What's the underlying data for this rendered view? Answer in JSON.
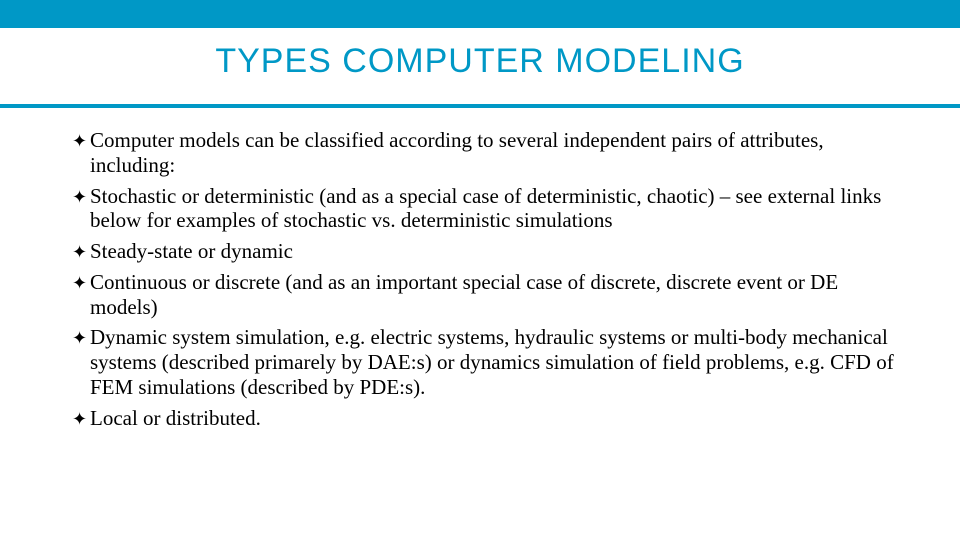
{
  "slide": {
    "title": "TYPES COMPUTER MODELING",
    "title_color": "#0098c6",
    "title_fontsize": 34,
    "accent_color": "#0098c6",
    "background_color": "#ffffff",
    "body_text_color": "#000000",
    "body_fontsize": 21,
    "bullet_marker": "✦",
    "bullets": [
      "Computer models can be classified according to several independent pairs of attributes, including:",
      "Stochastic or deterministic (and as a special case of deterministic, chaotic) – see external links below for examples of stochastic vs. deterministic simulations",
      "Steady-state or dynamic",
      "Continuous or discrete (and as an important special case of discrete, discrete event or DE models)",
      "Dynamic system simulation, e.g. electric systems, hydraulic systems or multi-body mechanical systems (described primarely by DAE:s) or dynamics simulation of field problems, e.g. CFD of FEM simulations (described by PDE:s).",
      "Local or distributed."
    ]
  }
}
